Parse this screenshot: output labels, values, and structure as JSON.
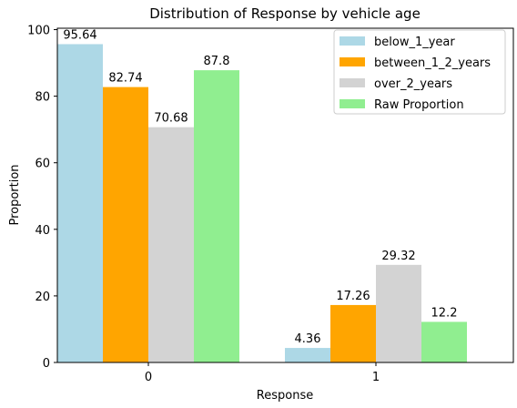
{
  "chart_data": {
    "type": "bar",
    "title": "Distribution of Response by vehicle age",
    "xlabel": "Response",
    "ylabel": "Proportion",
    "categories": [
      "0",
      "1"
    ],
    "ylim": [
      0,
      100
    ],
    "yticks": [
      "0",
      "20",
      "40",
      "60",
      "80",
      "100"
    ],
    "series": [
      {
        "name": "below_1_year",
        "color": "#add8e6",
        "values": [
          95.64,
          4.36
        ],
        "labels": [
          "95.64",
          "4.36"
        ]
      },
      {
        "name": "between_1_2_years",
        "color": "#ffa500",
        "values": [
          82.74,
          17.26
        ],
        "labels": [
          "82.74",
          "17.26"
        ]
      },
      {
        "name": "over_2_years",
        "color": "#d3d3d3",
        "values": [
          70.68,
          29.32
        ],
        "labels": [
          "70.68",
          "29.32"
        ]
      },
      {
        "name": "Raw Proportion",
        "color": "#90ee90",
        "values": [
          87.8,
          12.2
        ],
        "labels": [
          "87.8",
          "12.2"
        ]
      }
    ],
    "legend_position": "top-right",
    "grid": false
  }
}
